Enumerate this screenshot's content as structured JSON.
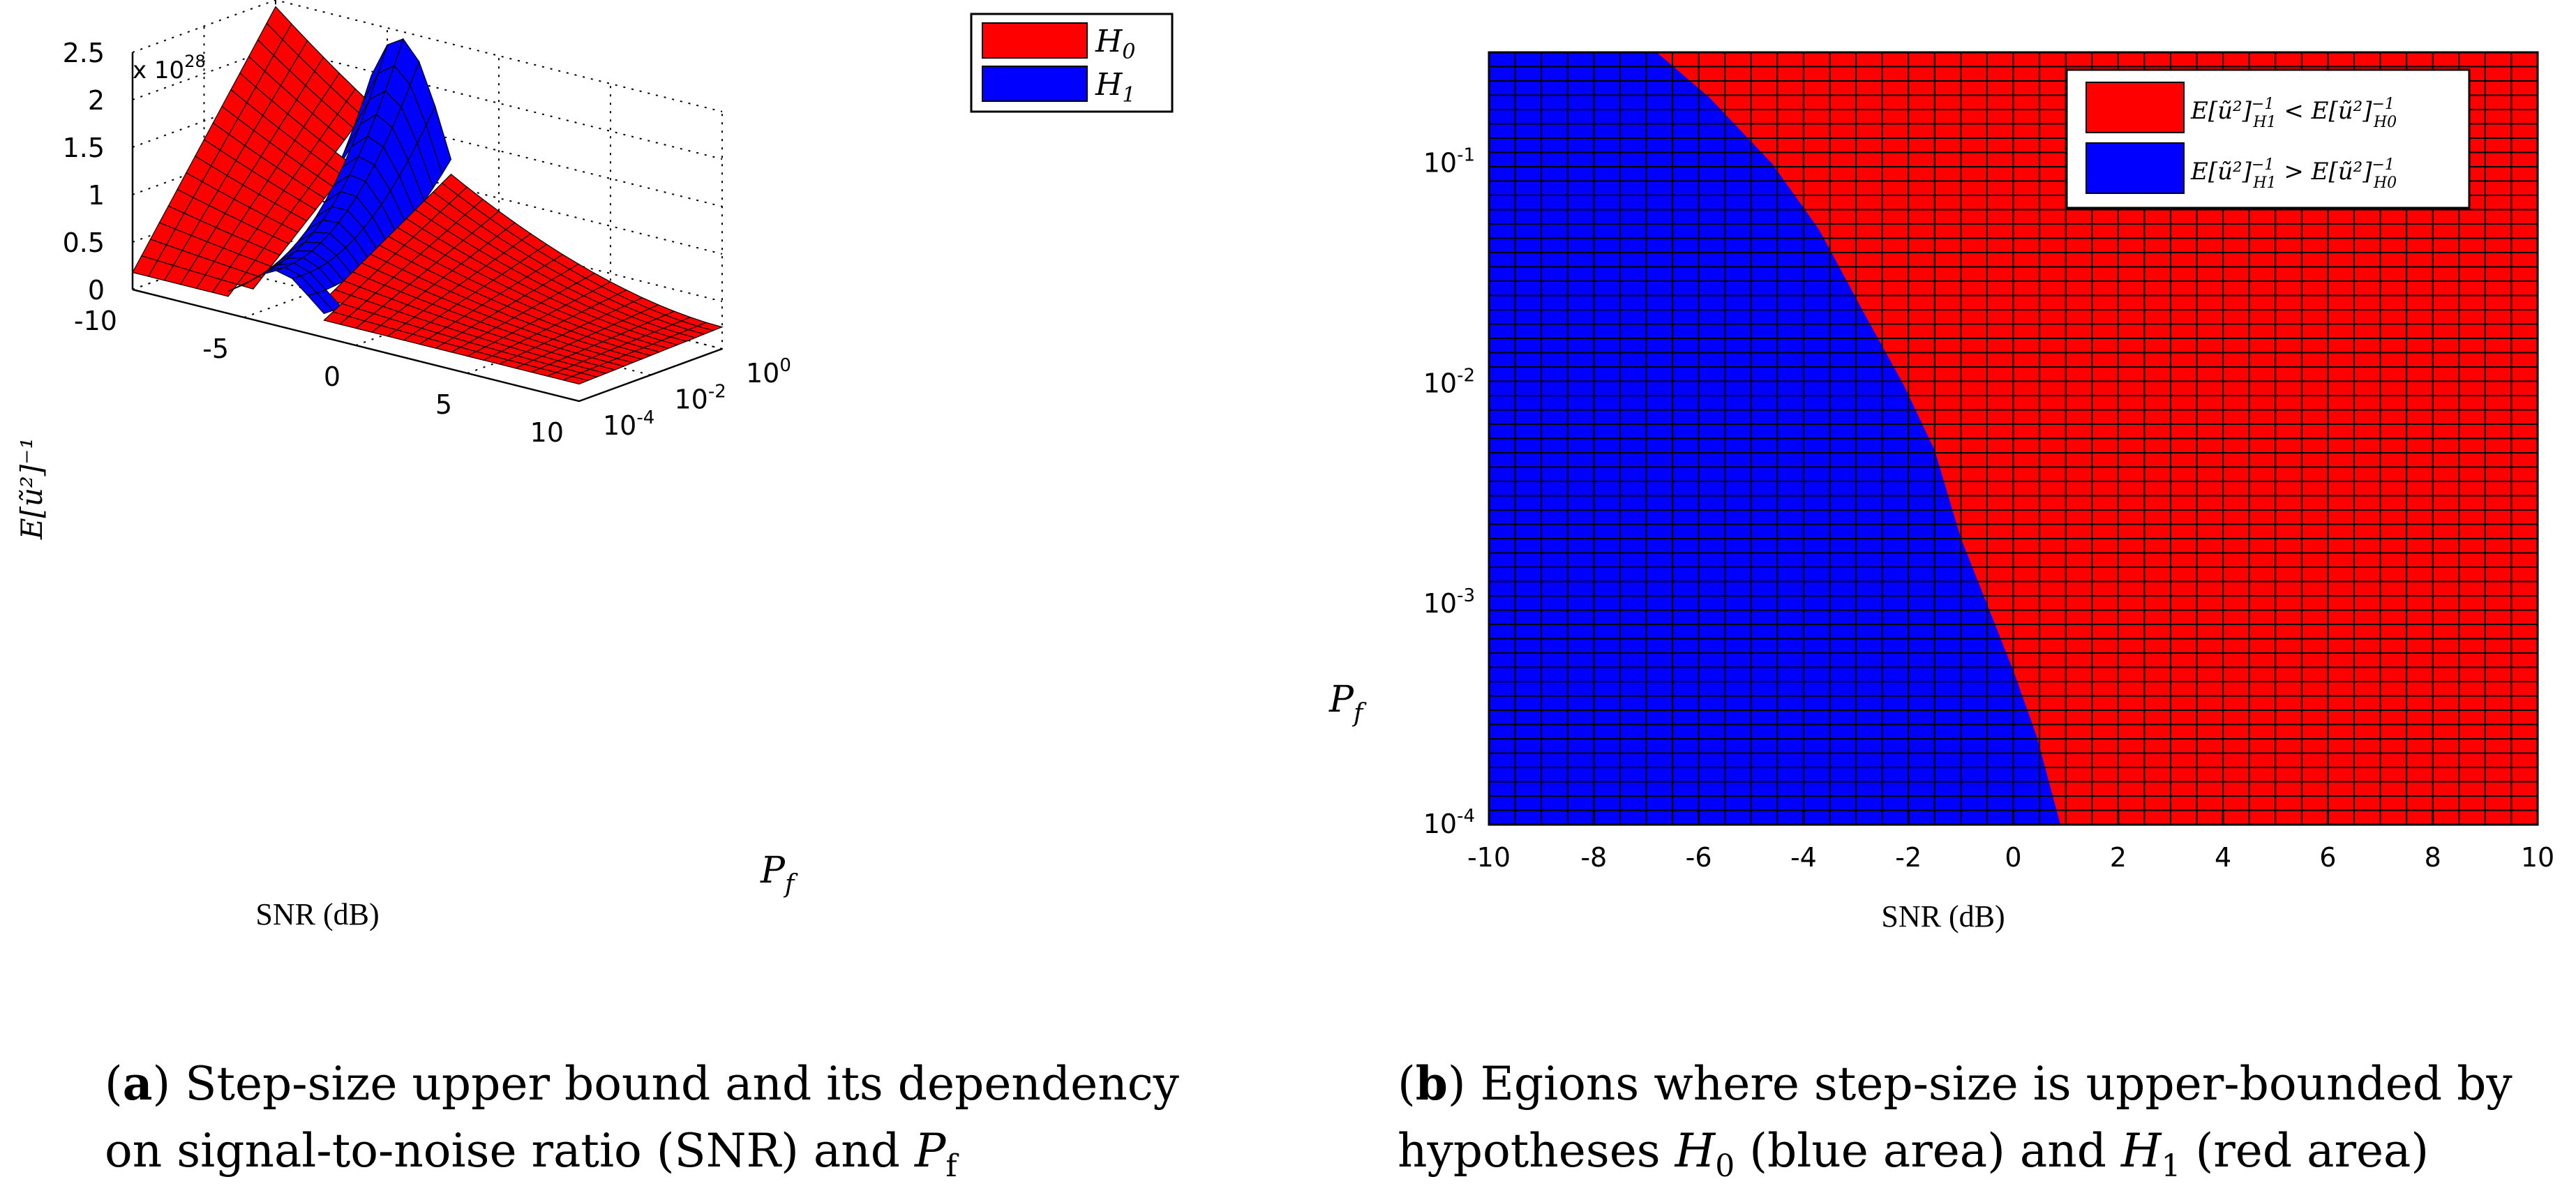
{
  "figure": {
    "subfig_a": {
      "label": "a",
      "caption_line1_suffix": ") Step-size upper bound and its dependency",
      "caption_line2_text": "on signal-to-noise ratio (SNR) and ",
      "caption_line2_var": "P",
      "caption_line2_sub": "f"
    },
    "subfig_b": {
      "label": "b",
      "caption_line1_suffix": ") Egions where step-size is upper-bounded by",
      "caption_line2_a": "hypotheses ",
      "caption_line2_h0": "H",
      "caption_line2_h0_sub": "0",
      "caption_line2_b": " (blue area) and ",
      "caption_line2_h1": "H",
      "caption_line2_h1_sub": "1",
      "caption_line2_c": " (red area)"
    }
  },
  "chart_data": [
    {
      "type": "surface3d",
      "title": "",
      "zlabel": "E[ũ²]⁻¹",
      "xlabel": "SNR (dB)",
      "ylabel": "P_f",
      "z_exponent_label": "x 10^28",
      "z_exponent_base": "x 10",
      "z_exponent_power": "28",
      "x_range": [
        -10,
        10
      ],
      "x_ticks": [
        "-10",
        "-5",
        "0",
        "5",
        "10"
      ],
      "y_scale": "log",
      "y_range": [
        0.0001,
        1
      ],
      "y_ticks": [
        "10^-4",
        "10^-2",
        "10^0"
      ],
      "y_tick_base": "10",
      "y_tick_exps": [
        "-4",
        "-2",
        "0"
      ],
      "z_range": [
        0,
        2.5
      ],
      "z_ticks": [
        "0",
        "0.5",
        "1",
        "1.5",
        "2",
        "2.5"
      ],
      "grid": true,
      "legend": [
        {
          "name": "H",
          "sub": "0",
          "color": "#ff0000"
        },
        {
          "name": "H",
          "sub": "1",
          "color": "#0000ff"
        }
      ],
      "legend_position": "top-right",
      "series": [
        {
          "name": "H0",
          "color": "#ff0000",
          "peak_value": 2.5,
          "peak_at": {
            "snr": -10,
            "pf": 1
          }
        },
        {
          "name": "H1",
          "color": "#0000ff",
          "peak_value": 2.5,
          "peak_at": {
            "snr": -4,
            "pf": 1
          }
        }
      ]
    },
    {
      "type": "region",
      "title": "",
      "xlabel": "SNR (dB)",
      "ylabel": "P_f",
      "x_range": [
        -10,
        10
      ],
      "x_ticks": [
        "-10",
        "-8",
        "-6",
        "-4",
        "-2",
        "0",
        "2",
        "4",
        "6",
        "8",
        "10"
      ],
      "y_scale": "log",
      "y_range": [
        0.0001,
        0.32
      ],
      "y_tick_exps": [
        "-4",
        "-3",
        "-2",
        "-1"
      ],
      "y_tick_base": "10",
      "grid": true,
      "legend_position": "top-right",
      "legend": [
        {
          "label": "E[ũ²]⁻¹_{H1} < E[ũ²]⁻¹_{H0}",
          "color": "#ff0000"
        },
        {
          "label": "E[ũ²]⁻¹_{H1} > E[ũ²]⁻¹_{H0}",
          "color": "#0000ff"
        }
      ],
      "boundary": {
        "snr": [
          -6.8,
          -5.8,
          -4.6,
          -3.7,
          -2.8,
          -2.1,
          -1.5,
          -1.0,
          -0.5,
          0.0,
          0.45,
          0.9
        ],
        "pf": [
          0.32,
          0.2,
          0.1,
          0.05,
          0.02,
          0.01,
          0.005,
          0.002,
          0.001,
          0.0005,
          0.00025,
          0.0001
        ]
      },
      "series": [
        {
          "name": "H1 > H0 region",
          "color": "#0000ff",
          "side": "left of boundary"
        },
        {
          "name": "H1 < H0 region",
          "color": "#ff0000",
          "side": "right of boundary"
        }
      ]
    }
  ]
}
